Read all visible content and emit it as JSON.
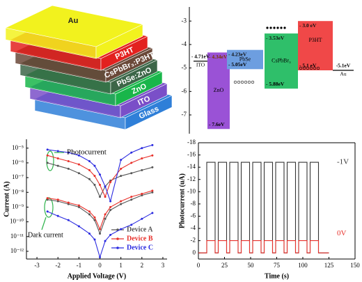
{
  "layer_stack": {
    "layers": [
      {
        "name": "Au",
        "color": "#f2f21e",
        "text_color": "#222"
      },
      {
        "name": "P3HT",
        "color": "#e3211f",
        "text_color": "#fff"
      },
      {
        "name": "CsPbBr₃:P3HT",
        "color": "#6a4838",
        "text_color": "#fff"
      },
      {
        "name": "PbSe:ZnO",
        "color": "#3c6648",
        "text_color": "#fff"
      },
      {
        "name": "ZnO",
        "color": "#19b64a",
        "text_color": "#fff"
      },
      {
        "name": "ITO",
        "color": "#7a4fc8",
        "text_color": "#fff"
      },
      {
        "name": "Glass",
        "color": "#2f7fd8",
        "text_color": "#fff"
      }
    ]
  },
  "chart_data": [
    {
      "type": "band",
      "ylim": [
        -7.8,
        -2.4
      ],
      "yticks": [
        -3,
        -4,
        -5,
        -6,
        -7
      ],
      "levels": [
        {
          "name": "ITO",
          "values": [
            -4.71
          ],
          "value_labels": [
            "- 4.71eV"
          ]
        },
        {
          "name": "Au",
          "values": [
            -5.1
          ],
          "value_labels": [
            "-5.1eV"
          ]
        }
      ],
      "series": [
        {
          "name": "ZnO",
          "color": "#9a52d6",
          "values": [
            -4.34,
            -7.6
          ],
          "value_labels": [
            "- 4.34eV",
            "- 7.6eV"
          ]
        },
        {
          "name": "PbSe",
          "color": "#6d9ee0",
          "values": [
            -4.23,
            -5.05
          ],
          "value_labels": [
            "- 4.23eV",
            "- 5.05eV"
          ]
        },
        {
          "name": "CsPbBr₃",
          "color": "#2fbf6a",
          "values": [
            -3.53,
            -5.88
          ],
          "value_labels": [
            "- 3.53eV",
            "- 5.88eV"
          ]
        },
        {
          "name": "P3HT",
          "color": "#f04848",
          "values": [
            -3.0,
            -5.1
          ],
          "value_labels": [
            "- 3.0 eV",
            "- 5.1 eV"
          ]
        }
      ]
    },
    {
      "type": "line",
      "log_y": true,
      "xlabel": "Applied Voltage (V)",
      "ylabel": "Current (A)",
      "xlim": [
        -3.5,
        3.2
      ],
      "xticks": [
        -3,
        -2,
        -1,
        0,
        1,
        2,
        3
      ],
      "ylim": [
        3e-13,
        4e-05
      ],
      "yticks": [
        {
          "value": 1e-05,
          "label": "10⁻⁵"
        },
        {
          "value": 1e-06,
          "label": "10⁻⁶"
        },
        {
          "value": 1e-07,
          "label": "10⁻⁷"
        },
        {
          "value": 1e-08,
          "label": "10⁻⁸"
        },
        {
          "value": 1e-09,
          "label": "10⁻⁹"
        },
        {
          "value": 1e-10,
          "label": "10⁻¹⁰"
        },
        {
          "value": 1e-11,
          "label": "10⁻¹¹"
        },
        {
          "value": 1e-12,
          "label": "10⁻¹²"
        }
      ],
      "x": [
        -2.5,
        -2,
        -1.5,
        -1,
        -0.5,
        -0.25,
        0,
        0.25,
        0.5,
        1,
        1.5,
        2,
        2.5
      ],
      "series": [
        {
          "name": "Device A",
          "color": "#555555",
          "light": [
            1e-06,
            6.3e-07,
            4e-07,
            2e-07,
            7.9e-08,
            3.2e-08,
            5e-09,
            2.5e-08,
            6.3e-08,
            1.3e-07,
            2e-07,
            3.2e-07,
            5e-07
          ],
          "dark": [
            3.2e-09,
            2.5e-09,
            1.6e-09,
            1e-09,
            3.2e-10,
            1.3e-10,
            1.6e-11,
            1.6e-10,
            6.3e-10,
            1.6e-09,
            3.2e-09,
            6.3e-09,
            1e-08
          ]
        },
        {
          "name": "Device B",
          "color": "#e8302a",
          "light": [
            3.2e-06,
            2e-06,
            1.3e-06,
            7.9e-07,
            3.2e-07,
            1.3e-07,
            3.2e-08,
            5e-09,
            5e-08,
            4e-07,
            1e-06,
            2e-06,
            3.2e-06
          ],
          "dark": [
            4e-09,
            3.2e-09,
            2e-09,
            1.3e-09,
            5e-10,
            2e-10,
            3.2e-11,
            3.2e-10,
            1e-09,
            2.5e-09,
            5e-09,
            7.9e-09,
            1.3e-08
          ]
        },
        {
          "name": "Device C",
          "color": "#2a2ae0",
          "light": [
            7.9e-06,
            6.3e-06,
            5e-06,
            3.2e-06,
            1.3e-06,
            6.3e-07,
            1.6e-07,
            2.5e-08,
            2.5e-09,
            1.6e-06,
            5e-06,
            1e-05,
            1.6e-05
          ],
          "dark": [
            5e-10,
            2.5e-10,
            1.3e-10,
            5e-11,
            1.6e-11,
            6.3e-12,
            4e-13,
            5e-12,
            1.3e-11,
            3.2e-11,
            6.3e-11,
            1.6e-10,
            4e-10
          ]
        }
      ],
      "annotations": [
        "Photocurrent",
        "Dark current"
      ]
    },
    {
      "type": "line",
      "xlabel": "Time (s)",
      "ylabel": "Photocurrent (uA)",
      "xlim": [
        0,
        150
      ],
      "xticks": [
        0,
        25,
        50,
        75,
        100,
        125,
        150
      ],
      "ylim": [
        1,
        -18
      ],
      "yticks": [
        0,
        -2,
        -4,
        -6,
        -8,
        -10,
        -12,
        -14,
        -16,
        -18
      ],
      "x": [
        0,
        8,
        8,
        16,
        16,
        19,
        19,
        27,
        27,
        30,
        30,
        38,
        38,
        41,
        41,
        49,
        49,
        52,
        52,
        60,
        60,
        63,
        63,
        71,
        71,
        74,
        74,
        82,
        82,
        85,
        85,
        93,
        93,
        96,
        96,
        104,
        104,
        107,
        107,
        115,
        115,
        125
      ],
      "series": [
        {
          "name": "-1V",
          "color": "#333333",
          "values": [
            0,
            0,
            -14.8,
            -14.8,
            0,
            0,
            -14.8,
            -14.8,
            0,
            0,
            -14.8,
            -14.8,
            0,
            0,
            -14.8,
            -14.8,
            0,
            0,
            -14.8,
            -14.8,
            0,
            0,
            -14.8,
            -14.8,
            0,
            0,
            -14.8,
            -14.8,
            0,
            0,
            -14.8,
            -14.8,
            0,
            0,
            -14.8,
            -14.8,
            0,
            0,
            -14.8,
            -14.8,
            0,
            0
          ]
        },
        {
          "name": "0V",
          "color": "#e8302a",
          "values": [
            0,
            0,
            -2,
            -2,
            0,
            0,
            -2,
            -2,
            0,
            0,
            -2,
            -2,
            0,
            0,
            -2,
            -2,
            0,
            0,
            -2,
            -2,
            0,
            0,
            -2,
            -2,
            0,
            0,
            -2,
            -2,
            0,
            0,
            -2,
            -2,
            0,
            0,
            -2,
            -2,
            0,
            0,
            -2,
            -2,
            0,
            0
          ]
        }
      ]
    }
  ]
}
